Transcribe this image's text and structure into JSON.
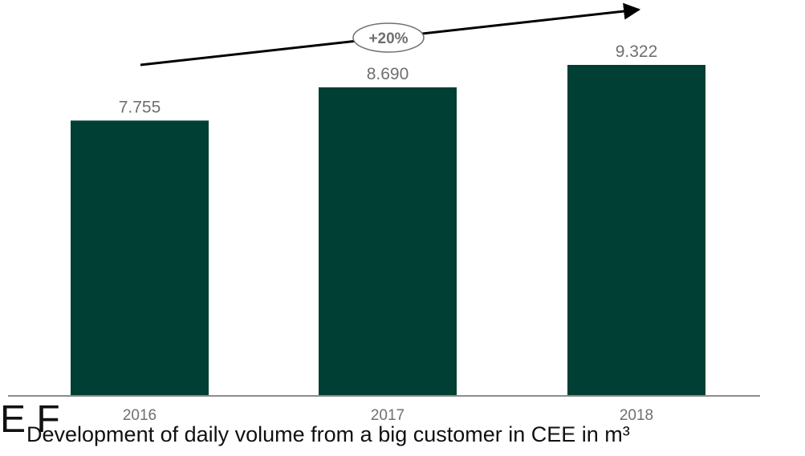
{
  "colors": {
    "bar": "#003f33",
    "axis": "#8c8c8c",
    "label": "#6f6f6f",
    "arrow": "#000000",
    "caption": "#111111"
  },
  "chart_data": {
    "type": "bar",
    "categories": [
      "2016",
      "2017",
      "2018"
    ],
    "values": [
      7755,
      8690,
      9322
    ],
    "data_labels": [
      "7.755",
      "8.690",
      "9.322"
    ],
    "ylim": [
      0,
      9322
    ],
    "xlabel": "",
    "ylabel": "",
    "title": "",
    "annotation": "+20%",
    "grid": false,
    "legend": "none"
  },
  "caption": "Development of daily volume from a big customer in CEE in m³",
  "left_fragment": "E F"
}
